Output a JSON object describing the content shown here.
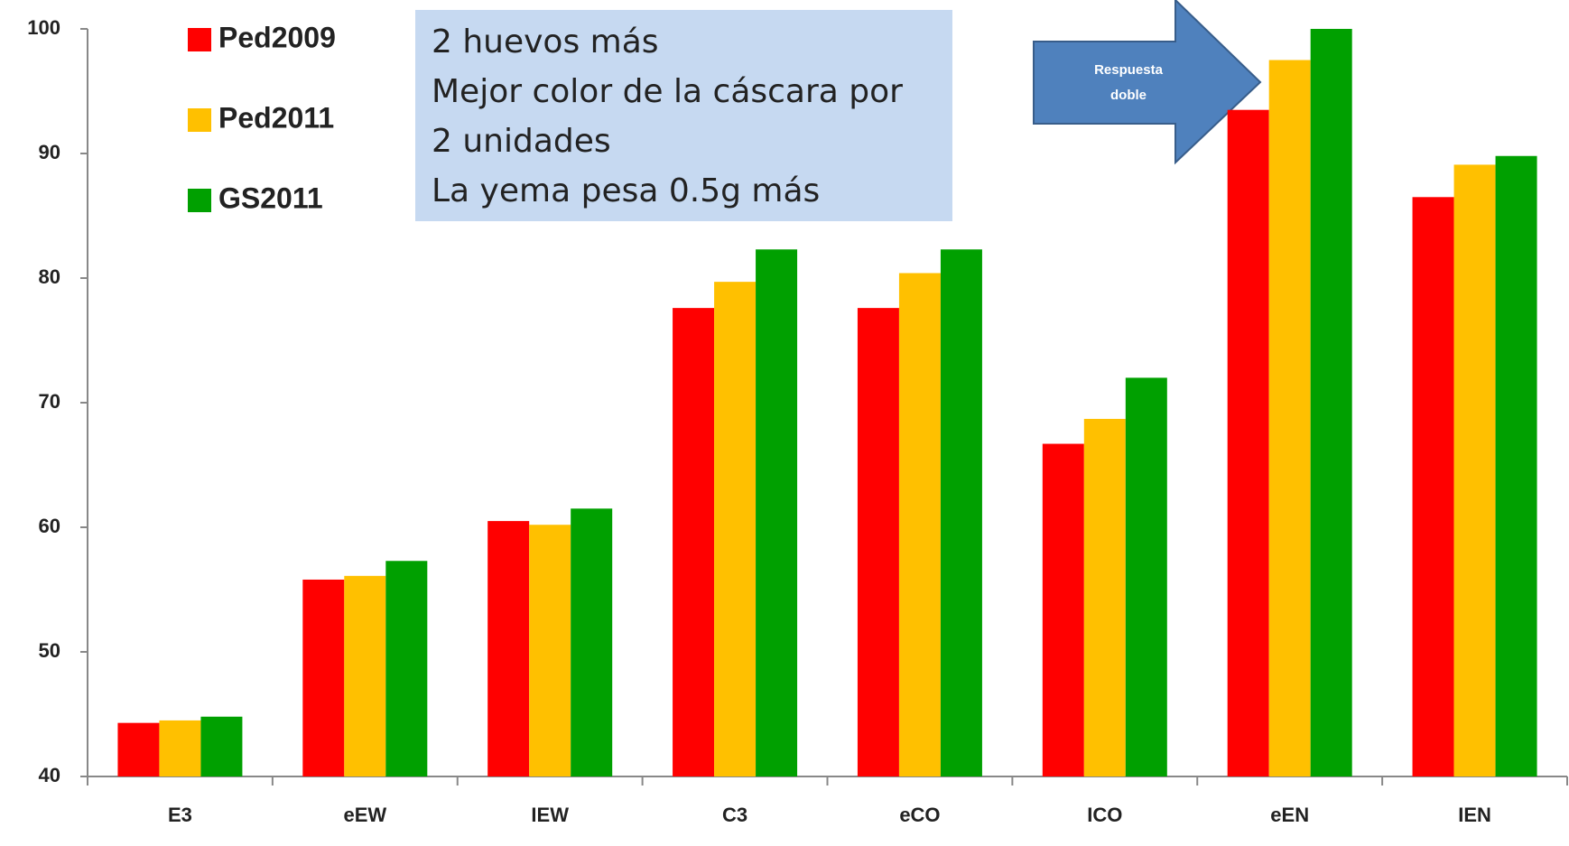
{
  "chart_data": {
    "type": "bar",
    "categories": [
      "E3",
      "eEW",
      "IEW",
      "C3",
      "eCO",
      "ICO",
      "eEN",
      "IEN"
    ],
    "series": [
      {
        "name": "Ped2009",
        "color": "#ff0000",
        "values": [
          44.3,
          55.8,
          60.5,
          77.6,
          77.6,
          66.7,
          93.5,
          86.5
        ]
      },
      {
        "name": "Ped2011",
        "color": "#ffc000",
        "values": [
          44.5,
          56.1,
          60.2,
          79.7,
          80.4,
          68.7,
          97.5,
          89.1
        ]
      },
      {
        "name": "GS2011",
        "color": "#00a000",
        "values": [
          44.8,
          57.3,
          61.5,
          82.3,
          82.3,
          72.0,
          100,
          89.8
        ]
      }
    ],
    "ylim": [
      40,
      100
    ],
    "yticks": [
      40,
      50,
      60,
      70,
      80,
      90,
      100
    ],
    "annotation": [
      "2 huevos más",
      "Mejor color de la cáscara por",
      "2 unidades",
      "La yema pesa 0.5g más"
    ],
    "arrow_label": [
      "Respuesta",
      "doble"
    ]
  }
}
